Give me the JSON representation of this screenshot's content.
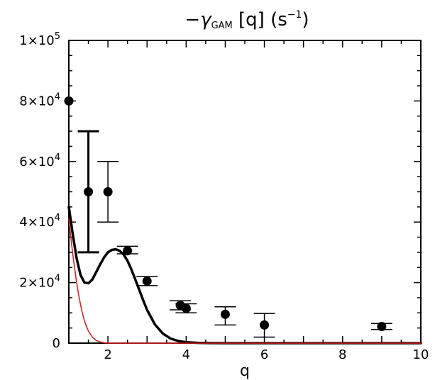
{
  "chart_data": {
    "type": "scatter",
    "title_parts": {
      "prefix": "−",
      "symbol": "γ",
      "subscript": "GAM",
      "bracket_open": "[",
      "variable": "q",
      "bracket_close": "]",
      "unit_open": "(s",
      "unit_exp": "−1",
      "unit_close": ")"
    },
    "xlabel": "q",
    "ylabel": "",
    "xlim": [
      1,
      10
    ],
    "ylim": [
      0,
      100000
    ],
    "x_ticks": [
      {
        "value": 2,
        "label": "2"
      },
      {
        "value": 4,
        "label": "4"
      },
      {
        "value": 6,
        "label": "6"
      },
      {
        "value": 8,
        "label": "8"
      },
      {
        "value": 10,
        "label": "10"
      }
    ],
    "y_ticks": [
      {
        "value": 0,
        "label_mant": "0",
        "label_exp": ""
      },
      {
        "value": 20000,
        "label_mant": "2×10",
        "label_exp": "4"
      },
      {
        "value": 40000,
        "label_mant": "4×10",
        "label_exp": "4"
      },
      {
        "value": 60000,
        "label_mant": "6×10",
        "label_exp": "4"
      },
      {
        "value": 80000,
        "label_mant": "8×10",
        "label_exp": "4"
      },
      {
        "value": 100000,
        "label_mant": "1×10",
        "label_exp": "5"
      }
    ],
    "grid": false,
    "points": [
      {
        "x": 1.0,
        "y": 80000
      },
      {
        "x": 1.5,
        "y": 50000,
        "err_low": 30000,
        "err_high": 70000,
        "thick": true
      },
      {
        "x": 2.0,
        "y": 50000,
        "err_low": 40000,
        "err_high": 60000
      },
      {
        "x": 2.5,
        "y": 30500,
        "err_low": 29500,
        "err_high": 32000
      },
      {
        "x": 3.0,
        "y": 20500,
        "err_low": 19000,
        "err_high": 22000
      },
      {
        "x": 3.85,
        "y": 12500,
        "err_low": 11000,
        "err_high": 14000
      },
      {
        "x": 4.0,
        "y": 11500,
        "err_low": 10000,
        "err_high": 13000
      },
      {
        "x": 5.0,
        "y": 9500,
        "err_low": 6000,
        "err_high": 12000
      },
      {
        "x": 6.0,
        "y": 6000,
        "err_low": 2000,
        "err_high": 9800
      },
      {
        "x": 9.0,
        "y": 5500,
        "err_low": 4500,
        "err_high": 6500
      }
    ],
    "series": [
      {
        "color": "#000000",
        "x": [
          1.0,
          1.1,
          1.2,
          1.3,
          1.4,
          1.5,
          1.6,
          1.7,
          1.8,
          1.9,
          2.0,
          2.1,
          2.2,
          2.3,
          2.4,
          2.5,
          2.6,
          2.7,
          2.8,
          2.9,
          3.0,
          3.2,
          3.4,
          3.6,
          3.8,
          4.0,
          4.3,
          4.6,
          5.0,
          6.0,
          8.0,
          10.0
        ],
        "y": [
          45000,
          36000,
          28000,
          22500,
          20000,
          19800,
          21000,
          23500,
          26000,
          28300,
          30000,
          30800,
          31000,
          30500,
          29300,
          27200,
          24300,
          21000,
          17600,
          14200,
          11000,
          6200,
          3200,
          1500,
          700,
          300,
          100,
          30,
          0,
          0,
          0,
          0
        ]
      },
      {
        "color": "#e02020",
        "x": [
          1.0,
          1.05,
          1.1,
          1.15,
          1.2,
          1.25,
          1.3,
          1.35,
          1.4,
          1.45,
          1.5,
          1.6,
          1.7,
          1.8,
          1.9,
          2.0,
          2.2,
          2.5,
          3.0,
          10.0
        ],
        "y": [
          41000,
          35000,
          29500,
          24500,
          20000,
          16000,
          12700,
          9800,
          7400,
          5500,
          4000,
          2000,
          900,
          400,
          150,
          50,
          0,
          0,
          0,
          0
        ]
      }
    ]
  }
}
